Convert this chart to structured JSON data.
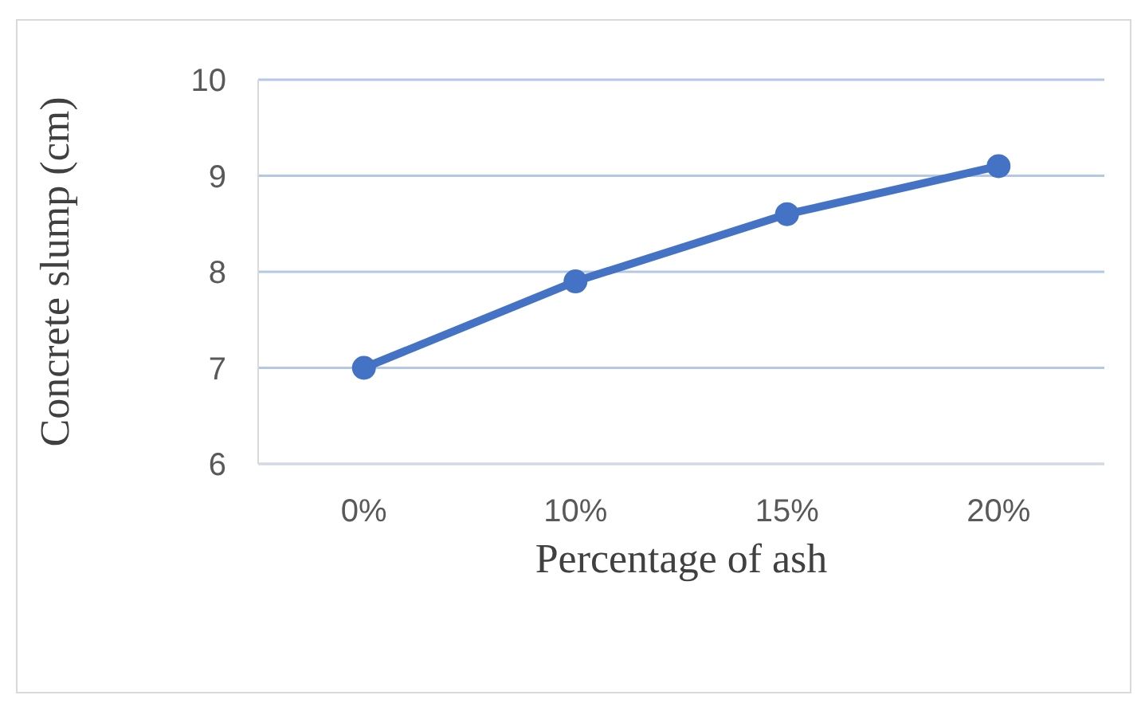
{
  "chart_data": {
    "type": "line",
    "xlabel": "Percentage of ash",
    "ylabel": "Concrete slump (cm)",
    "categories": [
      "0%",
      "10%",
      "15%",
      "20%"
    ],
    "series": [
      {
        "color": "#4472c4",
        "values": [
          7,
          7.9,
          8.6,
          9.1
        ]
      }
    ],
    "ylim": [
      6,
      10
    ],
    "yticks": [
      6,
      7,
      8,
      9,
      10
    ],
    "grid": "y",
    "legend": false,
    "marker": "circle",
    "line_style": "solid"
  }
}
